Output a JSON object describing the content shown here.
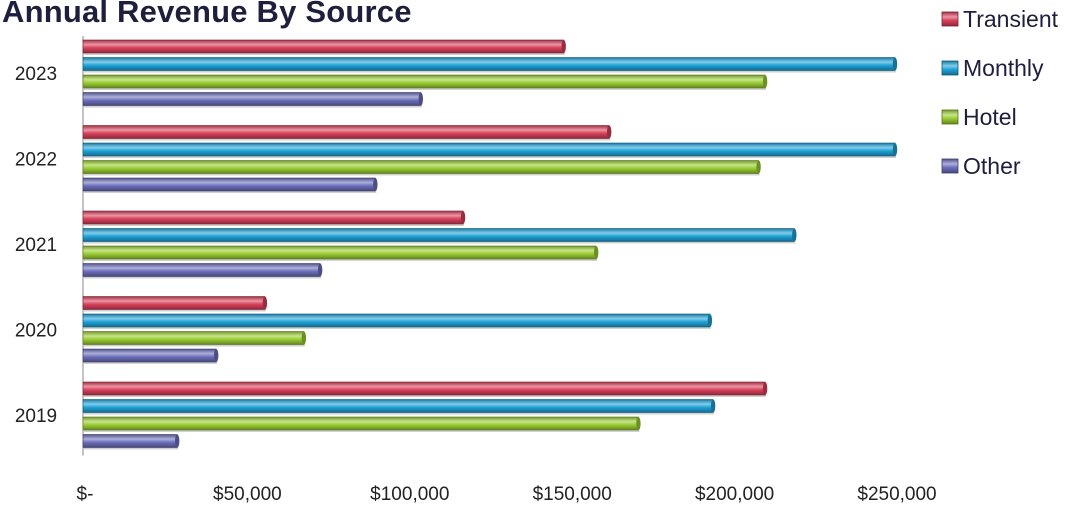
{
  "chart_data": {
    "type": "bar",
    "orientation": "horizontal",
    "title": "Annual Revenue By Source",
    "xlabel": "",
    "ylabel": "",
    "categories": [
      "2023",
      "2022",
      "2021",
      "2020",
      "2019"
    ],
    "xlim": [
      0,
      250000
    ],
    "x_ticks": [
      0,
      50000,
      100000,
      150000,
      200000,
      250000
    ],
    "x_tick_labels": [
      "$-",
      "$50,000",
      "$100,000",
      "$150,000",
      "$200,000",
      "$250,000"
    ],
    "series": [
      {
        "name": "Transient",
        "color": "#d9405a",
        "values": [
          148000,
          162000,
          117000,
          56000,
          210000
        ]
      },
      {
        "name": "Monthly",
        "color": "#1fa3d8",
        "values": [
          250000,
          250000,
          219000,
          193000,
          194000
        ]
      },
      {
        "name": "Hotel",
        "color": "#9acd32",
        "values": [
          210000,
          208000,
          158000,
          68000,
          171000
        ]
      },
      {
        "name": "Other",
        "color": "#6c6fbc",
        "values": [
          104000,
          90000,
          73000,
          41000,
          29000
        ]
      }
    ],
    "grid": false,
    "legend_position": "right"
  }
}
